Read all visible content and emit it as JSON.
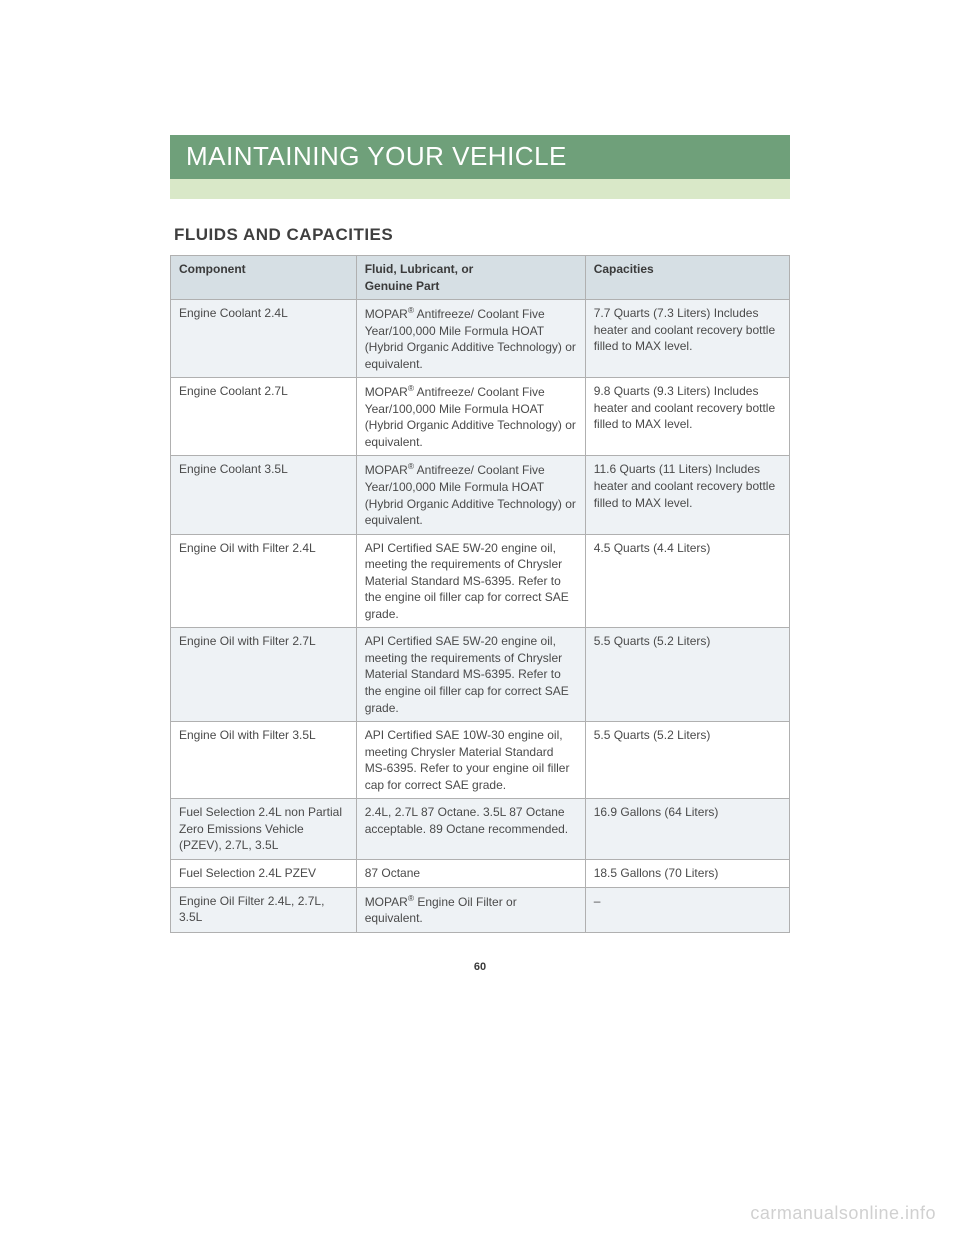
{
  "chapterTitle": "MAINTAINING YOUR VEHICLE",
  "sectionTitle": "FLUIDS AND CAPACITIES",
  "pageNumber": "60",
  "watermark": "carmanualsonline.info",
  "headers": {
    "col1": "Component",
    "col2a": "Fluid, Lubricant, or",
    "col2b": "Genuine Part",
    "col3": "Capacities"
  },
  "rows": [
    {
      "component": "Engine Coolant 2.4L",
      "fluidPre": "MOPAR",
      "fluidPost": " Antifreeze/ Coolant Five Year/100,000 Mile Formula HOAT (Hybrid Organic Additive Technology) or equivalent.",
      "capacity": "7.7 Quarts (7.3 Liters) Includes heater and coolant recovery bottle filled to MAX level.",
      "shade": true,
      "reg": true
    },
    {
      "component": "Engine Coolant 2.7L",
      "fluidPre": "MOPAR",
      "fluidPost": " Antifreeze/ Coolant Five Year/100,000 Mile Formula HOAT (Hybrid Organic Additive Technology) or equivalent.",
      "capacity": "9.8 Quarts (9.3 Liters) Includes heater and coolant recovery bottle filled to MAX level.",
      "shade": false,
      "reg": true
    },
    {
      "component": "Engine Coolant 3.5L",
      "fluidPre": "MOPAR",
      "fluidPost": " Antifreeze/ Coolant Five Year/100,000 Mile Formula HOAT (Hybrid Organic Additive Technology) or equivalent.",
      "capacity": "11.6 Quarts (11 Liters) Includes heater and coolant recovery bottle filled to MAX level.",
      "shade": true,
      "reg": true
    },
    {
      "component": "Engine Oil with Filter 2.4L",
      "fluidPre": "",
      "fluidPost": "API Certified SAE 5W-20 engine oil, meeting the requirements of Chrysler Material Standard MS-6395. Refer to the engine oil filler cap for correct SAE grade.",
      "capacity": "4.5 Quarts (4.4 Liters)",
      "shade": false,
      "reg": false
    },
    {
      "component": "Engine Oil with Filter 2.7L",
      "fluidPre": "",
      "fluidPost": "API Certified SAE 5W-20 engine oil, meeting the requirements of Chrysler Material Standard MS-6395. Refer to the engine oil filler cap for correct SAE grade.",
      "capacity": "5.5 Quarts (5.2 Liters)",
      "shade": true,
      "reg": false
    },
    {
      "component": "Engine Oil with Filter 3.5L",
      "fluidPre": "",
      "fluidPost": "API Certified SAE 10W-30 engine oil, meeting Chrysler Material Standard MS-6395. Refer to your engine oil filler cap for correct SAE grade.",
      "capacity": "5.5 Quarts (5.2 Liters)",
      "shade": false,
      "reg": false
    },
    {
      "component": "Fuel Selection 2.4L non Partial Zero Emissions Vehicle (PZEV), 2.7L, 3.5L",
      "fluidPre": "",
      "fluidPost": "2.4L, 2.7L 87 Octane. 3.5L 87 Octane acceptable. 89 Octane recommended.",
      "capacity": "16.9 Gallons (64 Liters)",
      "shade": true,
      "reg": false
    },
    {
      "component": "Fuel Selection 2.4L PZEV",
      "fluidPre": "",
      "fluidPost": "87 Octane",
      "capacity": "18.5 Gallons (70 Liters)",
      "shade": false,
      "reg": false
    },
    {
      "component": "Engine Oil Filter 2.4L, 2.7L, 3.5L",
      "fluidPre": "MOPAR",
      "fluidPost": " Engine Oil Filter or equivalent.",
      "capacity": "–",
      "capCenter": true,
      "shade": true,
      "reg": true
    }
  ]
}
